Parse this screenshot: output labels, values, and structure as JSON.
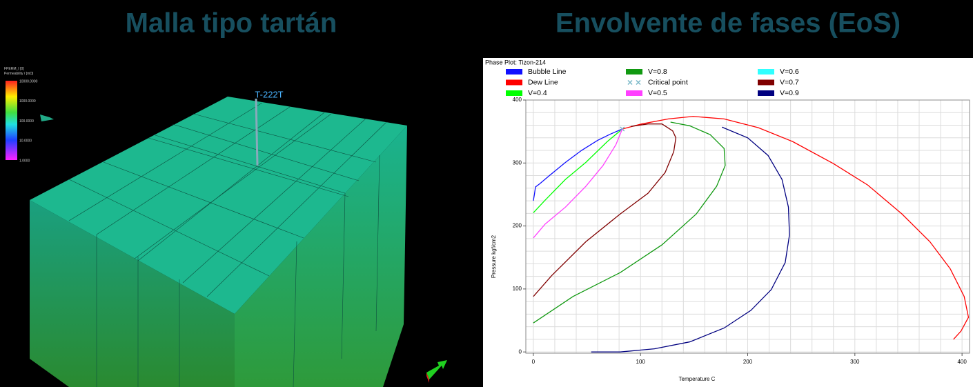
{
  "slide_titles": [
    "Malla tipo tartán",
    "Envolvente de fases (EoS)"
  ],
  "left_panel": {
    "property": "FPERM_I [0]",
    "property_unit": "Permeability / [mD]",
    "colorbar_labels": [
      "10000.0000",
      "1000.0000",
      "100.0000",
      "10.0000",
      "1.0000"
    ],
    "well_label": "T-222T"
  },
  "chart_data": {
    "type": "line",
    "title": "Phase Plot: Tizon-214",
    "x_label": "Temperature  C",
    "y_label": "Pressure  kgf/cm2",
    "xlim": [
      -7,
      407
    ],
    "ylim": [
      -2,
      400
    ],
    "xticks": [
      0,
      100,
      200,
      300,
      400
    ],
    "yticks": [
      0,
      100,
      200,
      300,
      400
    ],
    "xgrid": [
      0,
      20,
      40,
      60,
      80,
      100,
      120,
      140,
      160,
      180,
      200,
      220,
      240,
      260,
      280,
      300,
      320,
      340,
      360,
      380,
      400
    ],
    "ygrid": [
      0,
      20,
      40,
      60,
      80,
      100,
      120,
      140,
      160,
      180,
      200,
      220,
      240,
      260,
      280,
      300,
      320,
      340,
      360,
      380,
      400
    ],
    "grid": true,
    "series": [
      {
        "name": "Bubble Line",
        "color": "#1010ff",
        "x": [
          0,
          1,
          2,
          6,
          15,
          30,
          45,
          60,
          72,
          83
        ],
        "values": [
          240,
          250,
          262,
          267,
          280,
          301,
          320,
          336,
          346,
          354
        ]
      },
      {
        "name": "Dew Line",
        "color": "#ff0000",
        "x": [
          83,
          101,
          126,
          149,
          178,
          210,
          242,
          280,
          312,
          344,
          370,
          389,
          402,
          406,
          399,
          392
        ],
        "values": [
          354,
          362,
          370,
          374,
          370,
          356,
          334,
          299,
          265,
          219,
          175,
          132,
          88,
          55,
          33,
          20
        ]
      },
      {
        "name": "V=0.4",
        "color": "#00ff00",
        "x": [
          0,
          11,
          30,
          49,
          69,
          83
        ],
        "values": [
          221,
          241,
          274,
          301,
          334,
          354
        ]
      },
      {
        "name": "V=0.8",
        "color": "#119911",
        "x": [
          0,
          37,
          81,
          120,
          152,
          171,
          179,
          178,
          165,
          146,
          128
        ],
        "values": [
          46,
          88,
          126,
          170,
          219,
          263,
          296,
          323,
          345,
          359,
          365
        ]
      },
      {
        "name": "Critical point",
        "color": "#7ab8c8",
        "marker": "x",
        "x": [
          83
        ],
        "values": [
          354
        ]
      },
      {
        "name": "V=0.5",
        "color": "#ff40ff",
        "x": [
          0,
          11,
          30,
          49,
          65,
          77,
          83
        ],
        "values": [
          181,
          203,
          230,
          263,
          296,
          329,
          354
        ]
      },
      {
        "name": "V=0.6",
        "color": "#30ffff",
        "x": [],
        "values": []
      },
      {
        "name": "V=0.7",
        "color": "#800000",
        "x": [
          0,
          17,
          49,
          81,
          107,
          123,
          131,
          133,
          130,
          120,
          107,
          91
        ],
        "values": [
          88,
          121,
          175,
          219,
          252,
          285,
          318,
          340,
          351,
          362,
          362,
          358
        ]
      },
      {
        "name": "V=0.9",
        "color": "#000080",
        "x": [
          54,
          81,
          113,
          146,
          178,
          203,
          222,
          235,
          239,
          238,
          232,
          219,
          200,
          176
        ],
        "values": [
          0,
          0,
          5,
          16,
          38,
          66,
          99,
          142,
          186,
          230,
          274,
          312,
          340,
          357
        ]
      }
    ]
  }
}
